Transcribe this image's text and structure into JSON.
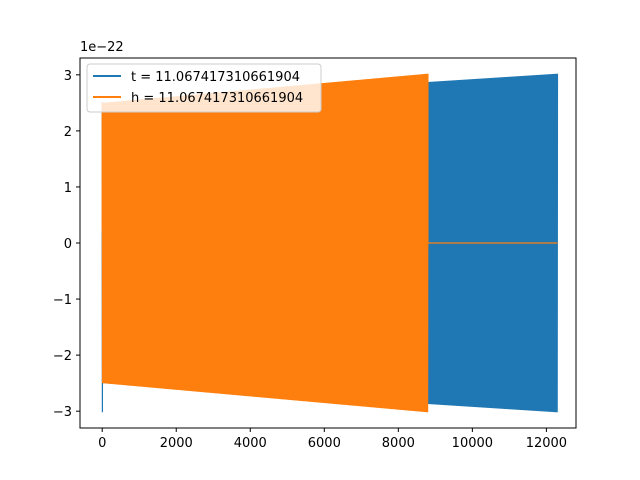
{
  "chart_data": {
    "type": "line",
    "title": "",
    "xlabel": "",
    "ylabel": "",
    "y_offset_label": "1e−22",
    "xlim": [
      -600,
      12800
    ],
    "ylim": [
      -3.3,
      3.3
    ],
    "x_ticks": [
      0,
      2000,
      4000,
      6000,
      8000,
      10000,
      12000
    ],
    "x_tick_labels": [
      "0",
      "2000",
      "4000",
      "6000",
      "8000",
      "10000",
      "12000"
    ],
    "y_ticks": [
      -3,
      -2,
      -1,
      0,
      1,
      2,
      3
    ],
    "y_tick_labels": [
      "−3",
      "−2",
      "−1",
      "0",
      "1",
      "2",
      "3"
    ],
    "grid": false,
    "legend_position": "top-left",
    "series": [
      {
        "name": "t = 11.067417310661904",
        "color": "#1f77b4",
        "description_points": {
          "x_start": 0,
          "x_end": 12300,
          "start_amplitude": 2.5,
          "end_amplitude": 3.02,
          "initial_spike": 3.02
        }
      },
      {
        "name": "h = 11.067417310661904",
        "color": "#ff7f0e",
        "description_points": {
          "x_start": 0,
          "x_end": 8800,
          "start_amplitude": 2.5,
          "end_amplitude": 3.02,
          "zero_from_x": 8800,
          "zero_to_x": 12300
        }
      }
    ]
  }
}
